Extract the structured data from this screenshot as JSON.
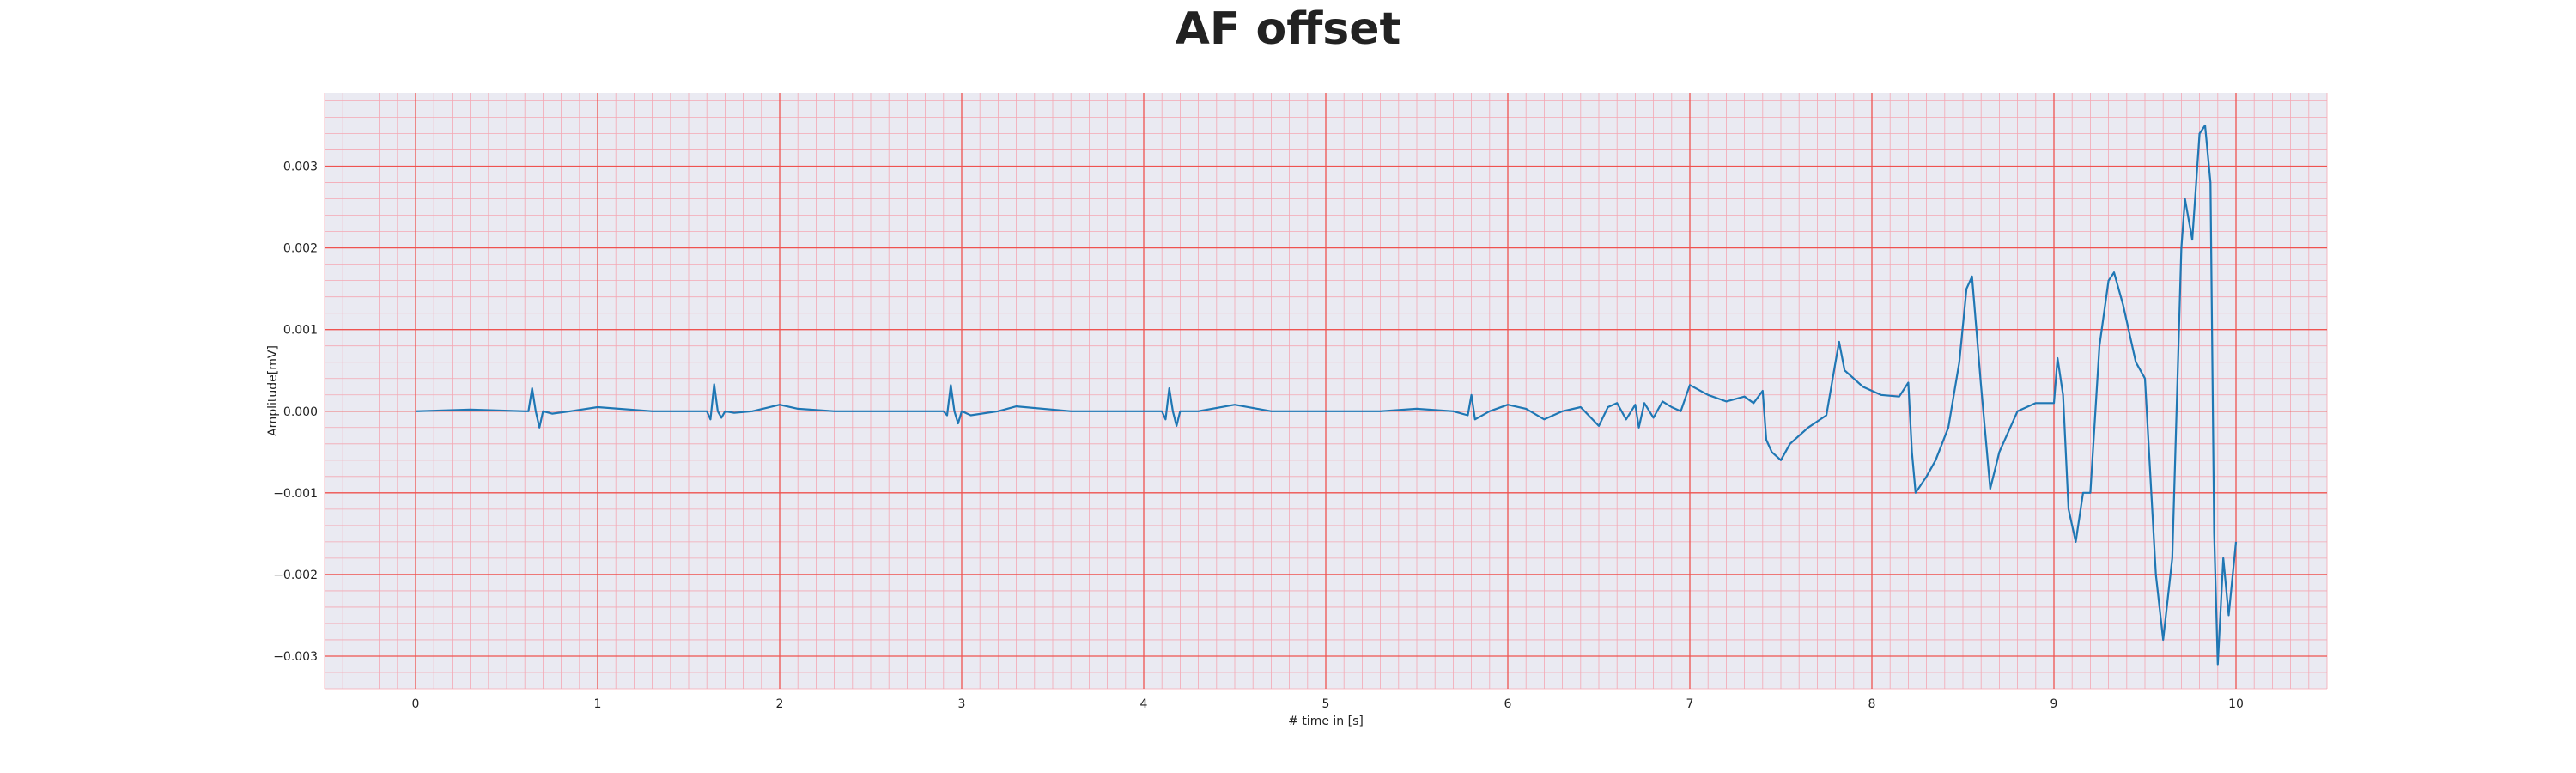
{
  "chart_data": {
    "type": "line",
    "title": "AF offset",
    "xlabel": "# time in [s]",
    "ylabel": "Amplitude[mV]",
    "xlim": [
      -0.5,
      10.5
    ],
    "ylim": [
      -0.0034,
      0.0039
    ],
    "x_ticks": [
      0,
      1,
      2,
      3,
      4,
      5,
      6,
      7,
      8,
      9,
      10
    ],
    "y_ticks": [
      -0.003,
      -0.002,
      -0.001,
      0.0,
      0.001,
      0.002,
      0.003
    ],
    "y_tick_labels": [
      "−0.003",
      "−0.002",
      "−0.001",
      "0.000",
      "0.001",
      "0.002",
      "0.003"
    ],
    "grid": true,
    "colors": {
      "line": "#1f77b4",
      "major_grid": "#ef5350",
      "minor_grid": "#f4a7b3",
      "background": "#eaeaf2"
    },
    "series": [
      {
        "x": [
          0,
          0.3,
          0.6,
          0.62,
          0.64,
          0.66,
          0.68,
          0.7,
          0.75,
          0.85,
          1.0,
          1.3,
          1.6,
          1.62,
          1.64,
          1.66,
          1.68,
          1.7,
          1.75,
          1.85,
          2.0,
          2.1,
          2.3,
          2.6,
          2.9,
          2.92,
          2.94,
          2.96,
          2.98,
          3.0,
          3.05,
          3.2,
          3.3,
          3.6,
          4.0,
          4.1,
          4.12,
          4.14,
          4.16,
          4.18,
          4.2,
          4.3,
          4.5,
          4.7,
          5.0,
          5.3,
          5.5,
          5.7,
          5.78,
          5.8,
          5.82,
          5.9,
          6.0,
          6.1,
          6.2,
          6.3,
          6.4,
          6.5,
          6.55,
          6.6,
          6.65,
          6.7,
          6.72,
          6.75,
          6.8,
          6.85,
          6.9,
          6.95,
          7.0,
          7.1,
          7.2,
          7.3,
          7.35,
          7.4,
          7.42,
          7.45,
          7.5,
          7.55,
          7.65,
          7.75,
          7.8,
          7.82,
          7.85,
          7.95,
          8.05,
          8.15,
          8.2,
          8.22,
          8.24,
          8.3,
          8.35,
          8.42,
          8.48,
          8.52,
          8.55,
          8.6,
          8.65,
          8.7,
          8.8,
          8.9,
          9.0,
          9.02,
          9.05,
          9.08,
          9.12,
          9.16,
          9.2,
          9.25,
          9.3,
          9.33,
          9.38,
          9.45,
          9.5,
          9.56,
          9.6,
          9.65,
          9.7,
          9.72,
          9.76,
          9.8,
          9.83,
          9.86,
          9.88,
          9.9,
          9.93,
          9.96,
          10.0
        ],
        "y": [
          0.0,
          2e-05,
          0.0,
          0.0,
          0.00028,
          0.0,
          -0.0002,
          0.0,
          -3e-05,
          0.0,
          5e-05,
          0.0,
          0.0,
          -0.0001,
          0.00033,
          0.0,
          -8e-05,
          0.0,
          -2e-05,
          0.0,
          8e-05,
          3e-05,
          0.0,
          0.0,
          0.0,
          -5e-05,
          0.00032,
          0.0,
          -0.00015,
          0.0,
          -5e-05,
          0.0,
          6e-05,
          0.0,
          0.0,
          0.0,
          -0.0001,
          0.00028,
          0.0,
          -0.00018,
          0.0,
          0.0,
          8e-05,
          0.0,
          0.0,
          0.0,
          3e-05,
          0.0,
          -5e-05,
          0.0002,
          -0.0001,
          0.0,
          8e-05,
          3e-05,
          -0.0001,
          0.0,
          5e-05,
          -0.00018,
          5e-05,
          0.0001,
          -0.0001,
          8e-05,
          -0.0002,
          0.0001,
          -8e-05,
          0.00012,
          5e-05,
          0.0,
          0.00032,
          0.0002,
          0.00012,
          0.00018,
          0.0001,
          0.00025,
          -0.00035,
          -0.0005,
          -0.0006,
          -0.0004,
          -0.0002,
          -5e-05,
          0.0006,
          0.00085,
          0.0005,
          0.0003,
          0.0002,
          0.00018,
          0.00035,
          -0.0005,
          -0.001,
          -0.0008,
          -0.0006,
          -0.0002,
          0.0006,
          0.0015,
          0.00165,
          0.0003,
          -0.00095,
          -0.0005,
          0.0,
          0.0001,
          0.0001,
          0.00065,
          0.0002,
          -0.0012,
          -0.0016,
          -0.001,
          -0.001,
          0.0008,
          0.0016,
          0.0017,
          0.0013,
          0.0006,
          0.0004,
          -0.002,
          -0.0028,
          -0.0018,
          0.002,
          0.0026,
          0.0021,
          0.0034,
          0.0035,
          0.0028,
          -0.0015,
          -0.0031,
          -0.0018,
          -0.0025,
          -0.0016
        ]
      }
    ]
  }
}
